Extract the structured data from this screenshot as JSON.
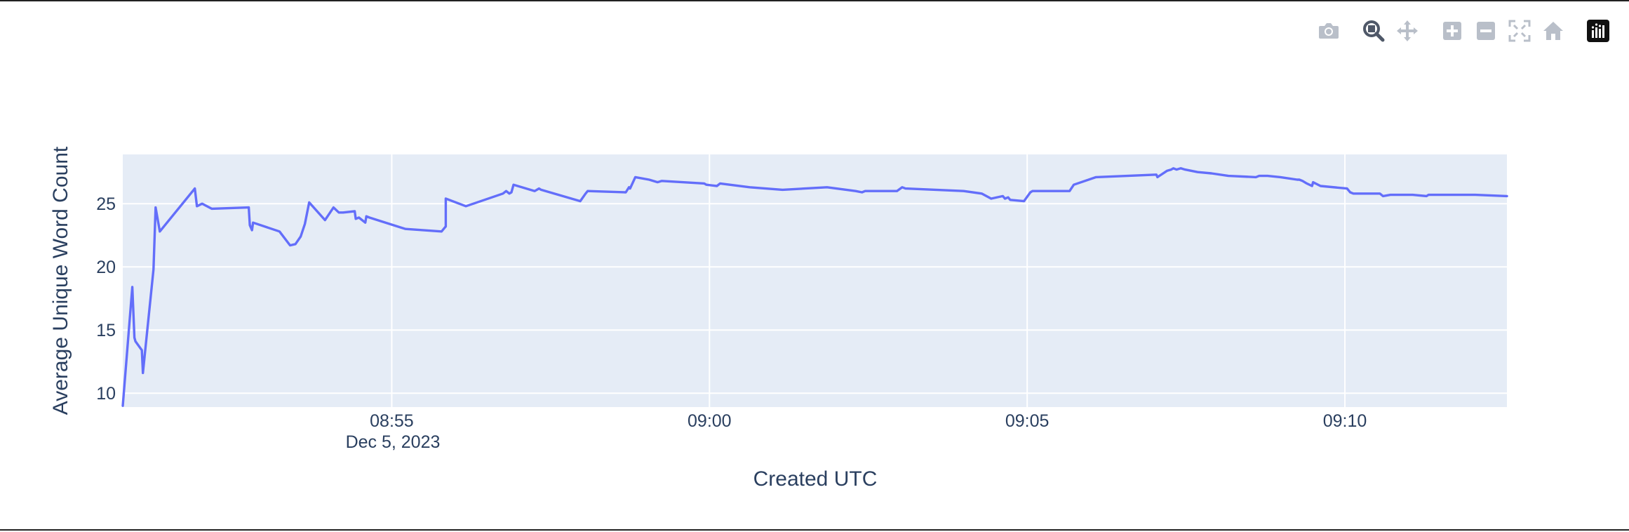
{
  "toolbar": {
    "buttons": [
      {
        "name": "camera-icon",
        "label": "Download plot as a png",
        "active": false
      },
      {
        "name": "zoom-icon",
        "label": "Zoom",
        "active": true
      },
      {
        "name": "pan-icon",
        "label": "Pan",
        "active": false
      },
      {
        "name": "zoom-in-icon",
        "label": "Zoom in",
        "active": false
      },
      {
        "name": "zoom-out-icon",
        "label": "Zoom out",
        "active": false
      },
      {
        "name": "autoscale-icon",
        "label": "Autoscale",
        "active": false
      },
      {
        "name": "home-icon",
        "label": "Reset axes",
        "active": false
      },
      {
        "name": "plotly-logo-icon",
        "label": "Produced with Plotly",
        "active": false
      }
    ]
  },
  "colors": {
    "line": "#636efa",
    "plot_bg": "#e5ecf6",
    "grid": "#ffffff",
    "text": "#2a3f5f"
  },
  "chart_data": {
    "type": "line",
    "title": "",
    "xlabel": "Created UTC",
    "ylabel": "Average Unique Word Count",
    "x_date_label": "Dec 5, 2023",
    "x_ticks": [
      "08:55",
      "09:00",
      "09:05",
      "09:10"
    ],
    "y_ticks": [
      10,
      15,
      20,
      25
    ],
    "xlim": [
      "08:50:46",
      "09:12:33"
    ],
    "ylim": [
      8.9,
      28.9
    ],
    "grid": true,
    "legend": "none",
    "series": [
      {
        "x": [
          "08:50:46",
          "08:50:55",
          "08:50:57",
          "08:50:58",
          "08:51:04",
          "08:51:05",
          "08:51:15",
          "08:51:17",
          "08:51:21",
          "08:51:54",
          "08:51:56",
          "08:52:01",
          "08:52:10",
          "08:52:45",
          "08:52:46",
          "08:52:48",
          "08:52:49",
          "08:53:14",
          "08:53:24",
          "08:53:29",
          "08:53:34",
          "08:53:38",
          "08:53:42",
          "08:53:57",
          "08:54:05",
          "08:54:10",
          "08:54:14",
          "08:54:25",
          "08:54:26",
          "08:54:29",
          "08:54:35",
          "08:54:36",
          "08:54:39",
          "08:55:09",
          "08:55:13",
          "08:55:47",
          "08:55:51",
          "08:55:51",
          "08:56:10",
          "08:56:45",
          "08:56:48",
          "08:56:51",
          "08:56:53",
          "08:56:55",
          "08:57:15",
          "08:57:19",
          "08:57:21",
          "08:57:58",
          "08:58:03",
          "08:58:05",
          "08:58:41",
          "08:58:44",
          "08:58:45",
          "08:58:50",
          "08:59:03",
          "08:59:11",
          "08:59:15",
          "08:59:55",
          "08:59:57",
          "09:00:07",
          "09:00:10",
          "09:00:38",
          "09:01:09",
          "09:01:51",
          "09:02:18",
          "09:02:24",
          "09:02:27",
          "09:02:57",
          "09:03:02",
          "09:03:05",
          "09:04:00",
          "09:04:17",
          "09:04:26",
          "09:04:37",
          "09:04:39",
          "09:04:42",
          "09:04:44",
          "09:04:57",
          "09:05:03",
          "09:05:05",
          "09:05:40",
          "09:05:44",
          "09:06:05",
          "09:07:02",
          "09:07:03",
          "09:07:12",
          "09:07:16",
          "09:07:18",
          "09:07:21",
          "09:07:25",
          "09:07:29",
          "09:07:41",
          "09:07:54",
          "09:08:10",
          "09:08:36",
          "09:08:39",
          "09:08:43",
          "09:08:47",
          "09:08:59",
          "09:09:15",
          "09:09:17",
          "09:09:20",
          "09:09:24",
          "09:09:29",
          "09:09:30",
          "09:09:37",
          "09:10:02",
          "09:10:04",
          "09:10:05",
          "09:10:08",
          "09:10:33",
          "09:10:36",
          "09:10:43",
          "09:10:47",
          "09:11:04",
          "09:11:17",
          "09:11:19",
          "09:11:25",
          "09:12:03",
          "09:12:33"
        ],
        "y": [
          9.0,
          18.4,
          14.4,
          14.1,
          13.4,
          11.6,
          19.8,
          24.7,
          22.8,
          26.2,
          24.8,
          25.0,
          24.6,
          24.7,
          23.3,
          22.9,
          23.5,
          22.8,
          21.7,
          21.8,
          22.4,
          23.4,
          25.1,
          23.7,
          24.7,
          24.3,
          24.3,
          24.4,
          23.8,
          23.9,
          23.5,
          24.0,
          23.9,
          23.1,
          23.0,
          22.8,
          23.2,
          25.4,
          24.8,
          25.8,
          26.0,
          25.8,
          25.9,
          26.5,
          26.0,
          26.2,
          26.1,
          25.2,
          25.8,
          26.0,
          25.9,
          26.3,
          26.2,
          27.1,
          26.9,
          26.7,
          26.8,
          26.6,
          26.5,
          26.4,
          26.6,
          26.3,
          26.1,
          26.3,
          26.0,
          25.9,
          26.0,
          26.0,
          26.3,
          26.2,
          26.0,
          25.8,
          25.4,
          25.6,
          25.4,
          25.5,
          25.3,
          25.2,
          25.9,
          26.0,
          26.0,
          26.5,
          27.1,
          27.3,
          27.1,
          27.6,
          27.7,
          27.8,
          27.7,
          27.8,
          27.7,
          27.5,
          27.4,
          27.2,
          27.1,
          27.2,
          27.2,
          27.2,
          27.1,
          26.9,
          26.9,
          26.8,
          26.6,
          26.4,
          26.7,
          26.4,
          26.2,
          26.0,
          25.9,
          25.8,
          25.8,
          25.6,
          25.7,
          25.7,
          25.7,
          25.6,
          25.7,
          25.7,
          25.7,
          25.6
        ]
      }
    ]
  }
}
